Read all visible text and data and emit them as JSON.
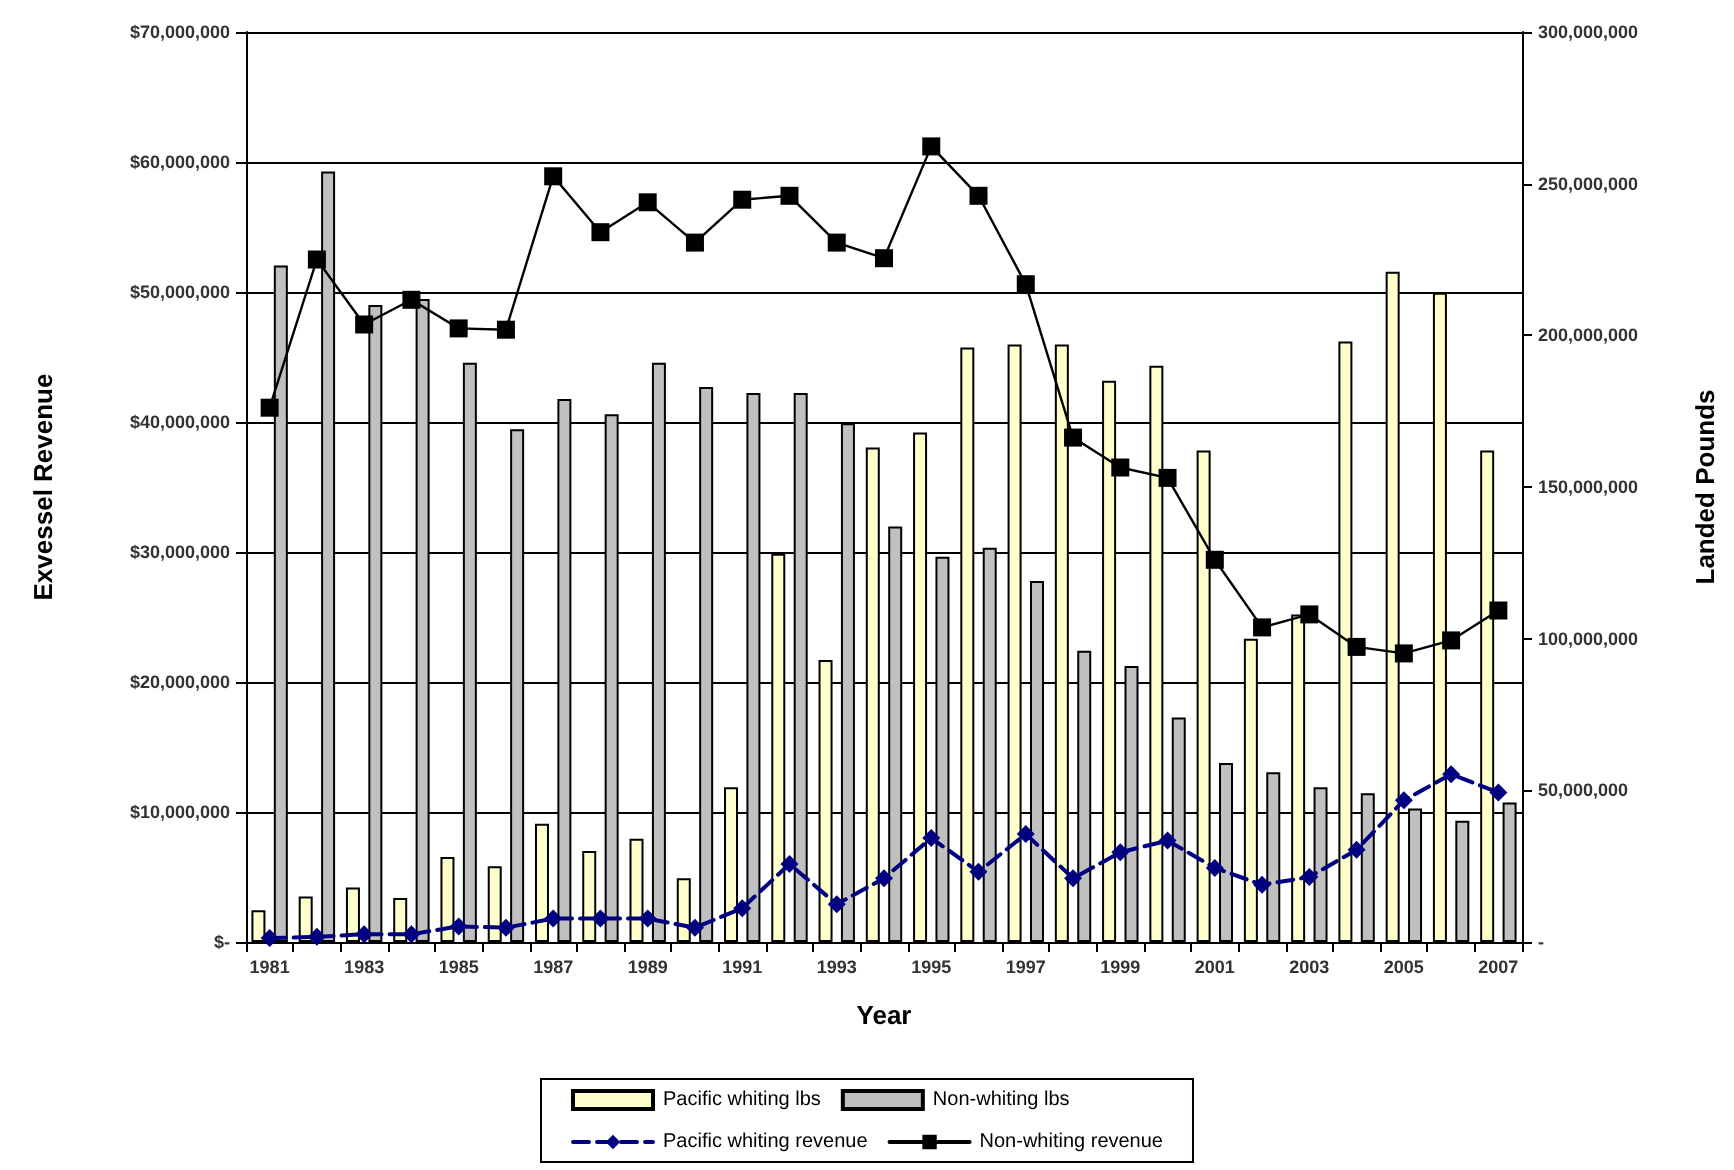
{
  "chart_data": {
    "type": "bar",
    "xlabel": "Year",
    "ylabel": "Exvessel Revenue",
    "y2label": "Landed Pounds",
    "categories": [
      "1981",
      null,
      "1983",
      null,
      "1985",
      null,
      "1987",
      null,
      "1989",
      null,
      "1991",
      null,
      "1993",
      null,
      "1995",
      null,
      "1997",
      null,
      "1999",
      null,
      "2001",
      null,
      "2003",
      null,
      "2005",
      null,
      "2007"
    ],
    "series": [
      {
        "name": "Pacific whiting lbs",
        "axis": "y2",
        "color": "#ffffcc",
        "values": [
          10500000,
          15000000,
          18000000,
          14500000,
          28000000,
          25000000,
          39000000,
          30000000,
          34000000,
          21000000,
          51000000,
          128000000,
          93000000,
          163000000,
          168000000,
          196000000,
          197000000,
          197000000,
          185000000,
          190000000,
          162000000,
          100000000,
          108000000,
          198000000,
          221000000,
          214000000,
          162000000
        ]
      },
      {
        "name": "Non-whiting lbs",
        "axis": "y2",
        "color": "#c0c0c0",
        "values": [
          223000000,
          254000000,
          210000000,
          212000000,
          191000000,
          169000000,
          179000000,
          174000000,
          191000000,
          183000000,
          181000000,
          181000000,
          171000000,
          137000000,
          127000000,
          130000000,
          119000000,
          96000000,
          91000000,
          74000000,
          59000000,
          56000000,
          51000000,
          49000000,
          44000000,
          40000000,
          46000000
        ]
      },
      {
        "name": "Pacific whiting revenue",
        "type": "line",
        "axis": "y",
        "color": "#000080",
        "marker": "diamond",
        "line_style": "dashed",
        "values": [
          300000,
          400000,
          600000,
          600000,
          1200000,
          1100000,
          1800000,
          1800000,
          1800000,
          1100000,
          2600000,
          6000000,
          2900000,
          4900000,
          8000000,
          5400000,
          8300000,
          4900000,
          6900000,
          7800000,
          5700000,
          4400000,
          5000000,
          7100000,
          10900000,
          12900000,
          11500000
        ]
      },
      {
        "name": "Non-whiting revenue",
        "type": "line",
        "axis": "y",
        "color": "#000000",
        "marker": "square",
        "line_style": "solid",
        "values": [
          41100000,
          52500000,
          47500000,
          49400000,
          47200000,
          47100000,
          58900000,
          54600000,
          56900000,
          53800000,
          57100000,
          57400000,
          53800000,
          52600000,
          61200000,
          57400000,
          50600000,
          38800000,
          36500000,
          35700000,
          29400000,
          24200000,
          25200000,
          22700000,
          22200000,
          23200000,
          25500000
        ]
      }
    ],
    "ylim": [
      0,
      70000000
    ],
    "yticks": [
      {
        "value": 0,
        "label": "$-"
      },
      {
        "value": 10000000,
        "label": "$10,000,000"
      },
      {
        "value": 20000000,
        "label": "$20,000,000"
      },
      {
        "value": 30000000,
        "label": "$30,000,000"
      },
      {
        "value": 40000000,
        "label": "$40,000,000"
      },
      {
        "value": 50000000,
        "label": "$50,000,000"
      },
      {
        "value": 60000000,
        "label": "$60,000,000"
      },
      {
        "value": 70000000,
        "label": "$70,000,000"
      }
    ],
    "y2lim": [
      0,
      300000000
    ],
    "y2ticks": [
      {
        "value": 0,
        "label": "-"
      },
      {
        "value": 50000000,
        "label": "50,000,000"
      },
      {
        "value": 100000000,
        "label": "100,000,000"
      },
      {
        "value": 150000000,
        "label": "150,000,000"
      },
      {
        "value": 200000000,
        "label": "200,000,000"
      },
      {
        "value": 250000000,
        "label": "250,000,000"
      },
      {
        "value": 300000000,
        "label": "300,000,000"
      }
    ],
    "grid": "y",
    "legend": "bottom"
  }
}
